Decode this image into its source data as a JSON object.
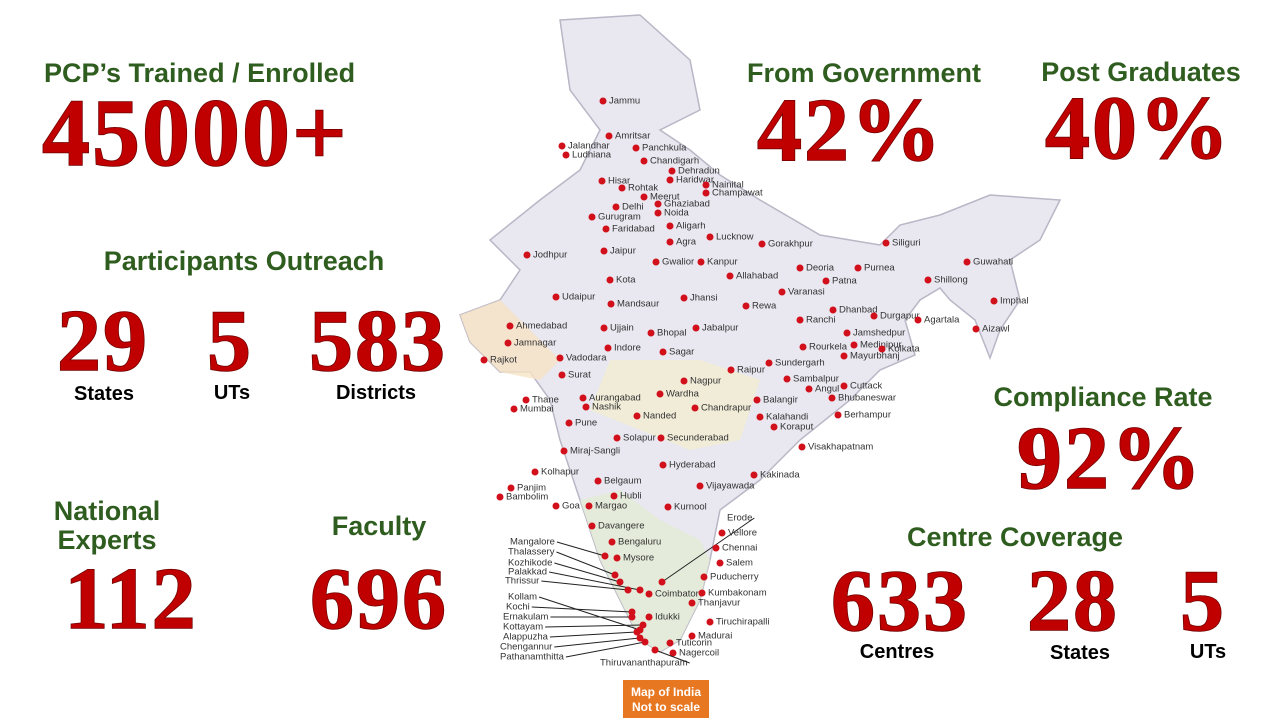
{
  "stats": {
    "trained": {
      "title": "PCP’s Trained / Enrolled",
      "value": "45000+"
    },
    "government": {
      "title": "From Government",
      "value": "42%"
    },
    "postgrad": {
      "title": "Post Graduates",
      "value": "40%"
    },
    "outreach": {
      "title": "Participants Outreach",
      "items": [
        {
          "value": "29",
          "label": "States"
        },
        {
          "value": "5",
          "label": "UTs"
        },
        {
          "value": "583",
          "label": "Districts"
        }
      ]
    },
    "compliance": {
      "title": "Compliance Rate",
      "value": "92%"
    },
    "experts": {
      "title": [
        "National",
        "Experts"
      ],
      "value": "112"
    },
    "faculty": {
      "title": "Faculty",
      "value": "696"
    },
    "coverage": {
      "title": "Centre Coverage",
      "items": [
        {
          "value": "633",
          "label": "Centres"
        },
        {
          "value": "28",
          "label": "States"
        },
        {
          "value": "5",
          "label": "UTs"
        }
      ]
    }
  },
  "map": {
    "note": [
      "Map of India",
      "Not to scale"
    ],
    "cities": [
      "Jammu",
      "Amritsar",
      "Jalandhar",
      "Panchkula",
      "Ludhiana",
      "Chandigarh",
      "Dehradun",
      "Haridwar",
      "Hisar",
      "Nainital",
      "Rohtak",
      "Champawat",
      "Meerut",
      "Delhi",
      "Ghaziabad",
      "Noida",
      "Gurugram",
      "Faridabad",
      "Aligarh",
      "Agra",
      "Jaipur",
      "Lucknow",
      "Gorakhpur",
      "Siliguri",
      "Guwahati",
      "Jodhpur",
      "Kanpur",
      "Gwalior",
      "Deoria",
      "Purnea",
      "Patna",
      "Allahabad",
      "Shillong",
      "Kota",
      "Varanasi",
      "Jhansi",
      "Udaipur",
      "Mandsaur",
      "Rewa",
      "Imphal",
      "Dhanbad",
      "Durgapur",
      "Agartala",
      "Ranchi",
      "Ujjain",
      "Bhopal",
      "Jabalpur",
      "Aizawl",
      "Jamshedpur",
      "Ahmedabad",
      "Indore",
      "Medinipur",
      "Kolkata",
      "Jamnagar",
      "Sagar",
      "Rourkela",
      "Mayurbhanj",
      "Vadodara",
      "Sundergarh",
      "Rajkot",
      "Raipur",
      "Surat",
      "Nagpur",
      "Sambalpur",
      "Cuttack",
      "Angul",
      "Wardha",
      "Aurangabad",
      "Bhubaneswar",
      "Balangir",
      "Thane",
      "Nashik",
      "Mumbai",
      "Chandrapur",
      "Berhampur",
      "Kalahandi",
      "Nanded",
      "Pune",
      "Koraput",
      "Solapur",
      "Secunderabad",
      "Visakhapatnam",
      "Miraj-Sangli",
      "Hyderabad",
      "Kolhapur",
      "Kakinada",
      "Belgaum",
      "Vijayawada",
      "Panjim",
      "Hubli",
      "Bambolim",
      "Goa",
      "Margao",
      "Kurnool",
      "Erode",
      "Davangere",
      "Vellore",
      "Bengaluru",
      "Mangalore",
      "Chennai",
      "Thalassery",
      "Mysore",
      "Kozhikode",
      "Salem",
      "Palakkad",
      "Puducherry",
      "Thrissur",
      "Coimbatore",
      "Kumbakonam",
      "Kollam",
      "Thanjavur",
      "Kochi",
      "Ernakulam",
      "Idukki",
      "Tiruchirapalli",
      "Kottayam",
      "Madurai",
      "Alappuzha",
      "Tuticorin",
      "Chengannur",
      "Nagercoil",
      "Pathanamthitta",
      "Thiruvananthapuram"
    ]
  }
}
